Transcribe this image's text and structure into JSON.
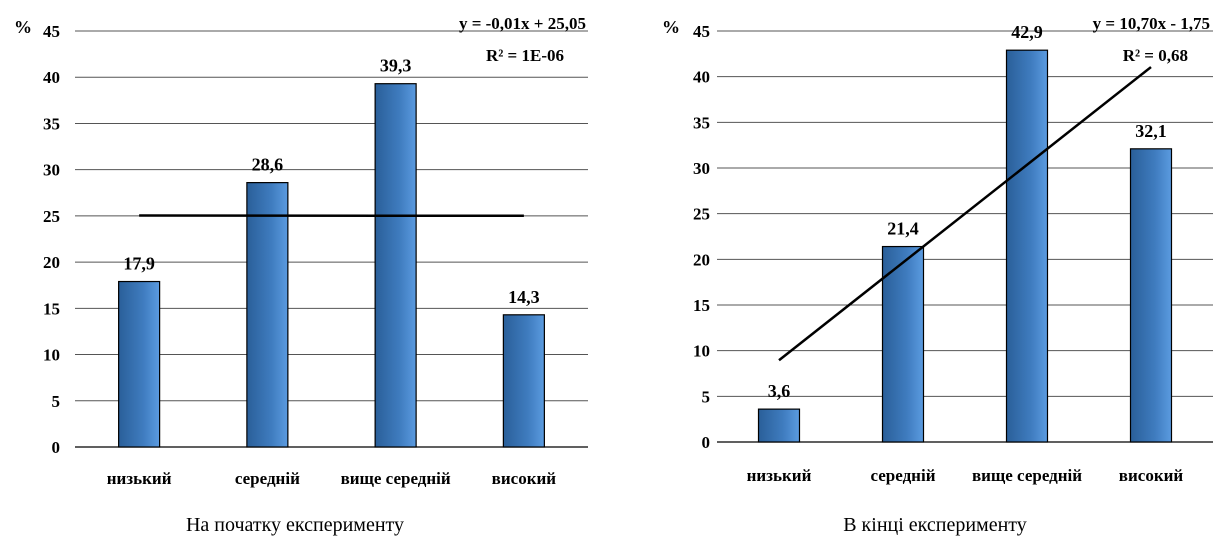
{
  "chart_data": [
    {
      "type": "bar",
      "caption": "На початку експерименту",
      "unit_label": "%",
      "categories": [
        "низький",
        "середній",
        "вище середній",
        "високий"
      ],
      "values": [
        17.9,
        28.6,
        39.3,
        14.3
      ],
      "value_labels": [
        "17,9",
        "28,6",
        "39,3",
        "14,3"
      ],
      "ylim": [
        0,
        45
      ],
      "yticks": [
        0,
        5,
        10,
        15,
        20,
        25,
        30,
        35,
        40,
        45
      ],
      "grid": true,
      "bar_color": "#3f7cbf",
      "trendline": {
        "type": "linear",
        "equation": "y = -0,01x + 25,05",
        "r_squared": "R² = 1E-06",
        "slope": -0.01,
        "intercept": 25.05
      }
    },
    {
      "type": "bar",
      "caption": "В кінці експерименту",
      "unit_label": "%",
      "categories": [
        "низький",
        "середній",
        "вище середній",
        "високий"
      ],
      "values": [
        3.6,
        21.4,
        42.9,
        32.1
      ],
      "value_labels": [
        "3,6",
        "21,4",
        "42,9",
        "32,1"
      ],
      "ylim": [
        0,
        45
      ],
      "yticks": [
        0,
        5,
        10,
        15,
        20,
        25,
        30,
        35,
        40,
        45
      ],
      "grid": true,
      "bar_color": "#3f7cbf",
      "trendline": {
        "type": "linear",
        "equation": "y = 10,70x - 1,75",
        "r_squared": "R² = 0,68",
        "slope": 10.7,
        "intercept": -1.75
      }
    }
  ]
}
